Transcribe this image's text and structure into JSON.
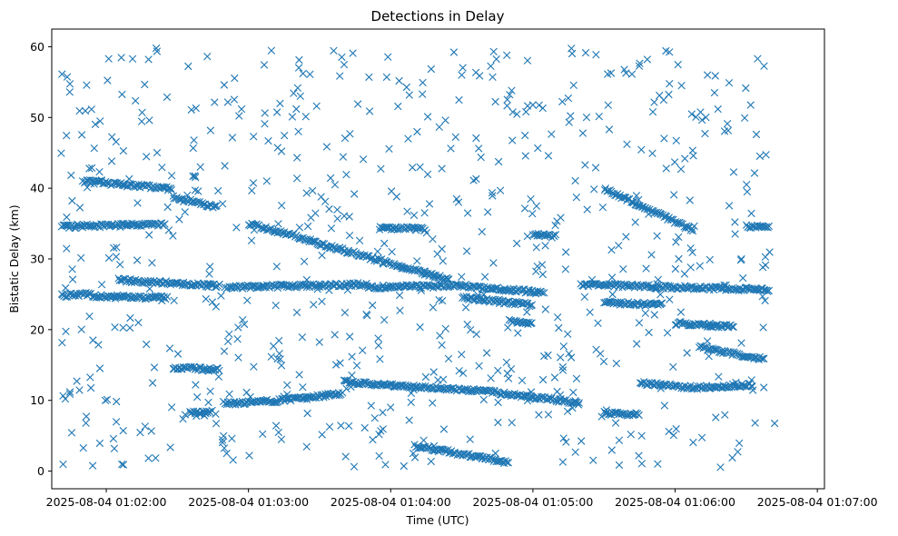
{
  "chart_data": {
    "type": "scatter",
    "title": "Detections in Delay",
    "xlabel": "Time (UTC)",
    "ylabel": "Bistatic Delay (km)",
    "marker": "x",
    "color": "#1f77b4",
    "grid": false,
    "xlim": [
      "2025-08-04 01:01:37",
      "2025-08-04 01:07:03"
    ],
    "ylim": [
      -2.5,
      62.5
    ],
    "x_ticks": [
      "2025-08-04 01:02:00",
      "2025-08-04 01:03:00",
      "2025-08-04 01:04:00",
      "2025-08-04 01:05:00",
      "2025-08-04 01:06:00",
      "2025-08-04 01:07:00"
    ],
    "y_ticks": [
      0,
      10,
      20,
      30,
      40,
      50,
      60
    ],
    "tracks": [
      {
        "x": [
          "2025-08-04 01:01:41",
          "2025-08-04 01:02:25"
        ],
        "y": [
          34.6,
          34.9
        ]
      },
      {
        "x": [
          "2025-08-04 01:01:41",
          "2025-08-04 01:01:54"
        ],
        "y": [
          24.8,
          25.1
        ]
      },
      {
        "x": [
          "2025-08-04 01:01:54",
          "2025-08-04 01:02:26"
        ],
        "y": [
          24.7,
          24.5
        ]
      },
      {
        "x": [
          "2025-08-04 01:01:50",
          "2025-08-04 01:02:28"
        ],
        "y": [
          41.0,
          39.9
        ]
      },
      {
        "x": [
          "2025-08-04 01:02:28",
          "2025-08-04 01:02:47"
        ],
        "y": [
          38.7,
          37.3
        ]
      },
      {
        "x": [
          "2025-08-04 01:02:05",
          "2025-08-04 01:02:48"
        ],
        "y": [
          27.0,
          26.2
        ]
      },
      {
        "x": [
          "2025-08-04 01:02:28",
          "2025-08-04 01:02:48"
        ],
        "y": [
          14.7,
          14.3
        ]
      },
      {
        "x": [
          "2025-08-04 01:02:35",
          "2025-08-04 01:02:45"
        ],
        "y": [
          8.2,
          8.4
        ]
      },
      {
        "x": [
          "2025-08-04 01:02:50",
          "2025-08-04 01:03:50"
        ],
        "y": [
          26.0,
          26.4
        ]
      },
      {
        "x": [
          "2025-08-04 01:03:00",
          "2025-08-04 01:04:25"
        ],
        "y": [
          35.0,
          27.0
        ]
      },
      {
        "x": [
          "2025-08-04 01:02:50",
          "2025-08-04 01:03:15"
        ],
        "y": [
          9.5,
          10.0
        ]
      },
      {
        "x": [
          "2025-08-04 01:03:15",
          "2025-08-04 01:03:40"
        ],
        "y": [
          10.0,
          11.0
        ]
      },
      {
        "x": [
          "2025-08-04 01:03:40",
          "2025-08-04 01:04:40"
        ],
        "y": [
          12.6,
          11.3
        ]
      },
      {
        "x": [
          "2025-08-04 01:03:50",
          "2025-08-04 01:04:30"
        ],
        "y": [
          26.0,
          26.2
        ]
      },
      {
        "x": [
          "2025-08-04 01:03:55",
          "2025-08-04 01:04:15"
        ],
        "y": [
          34.4,
          34.2
        ]
      },
      {
        "x": [
          "2025-08-04 01:04:30",
          "2025-08-04 01:05:05"
        ],
        "y": [
          26.2,
          25.2
        ]
      },
      {
        "x": [
          "2025-08-04 01:04:30",
          "2025-08-04 01:05:00"
        ],
        "y": [
          24.5,
          23.5
        ]
      },
      {
        "x": [
          "2025-08-04 01:04:40",
          "2025-08-04 01:05:20"
        ],
        "y": [
          11.3,
          9.6
        ]
      },
      {
        "x": [
          "2025-08-04 01:04:10",
          "2025-08-04 01:04:50"
        ],
        "y": [
          3.6,
          1.2
        ]
      },
      {
        "x": [
          "2025-08-04 01:04:50",
          "2025-08-04 01:05:00"
        ],
        "y": [
          21.2,
          20.8
        ]
      },
      {
        "x": [
          "2025-08-04 01:05:00",
          "2025-08-04 01:05:10"
        ],
        "y": [
          33.4,
          33.2
        ]
      },
      {
        "x": [
          "2025-08-04 01:05:30",
          "2025-08-04 01:06:08"
        ],
        "y": [
          39.9,
          34.0
        ]
      },
      {
        "x": [
          "2025-08-04 01:05:20",
          "2025-08-04 01:06:40"
        ],
        "y": [
          26.4,
          25.6
        ]
      },
      {
        "x": [
          "2025-08-04 01:05:30",
          "2025-08-04 01:05:55"
        ],
        "y": [
          23.8,
          23.5
        ]
      },
      {
        "x": [
          "2025-08-04 01:05:30",
          "2025-08-04 01:05:45"
        ],
        "y": [
          8.2,
          8.0
        ]
      },
      {
        "x": [
          "2025-08-04 01:05:45",
          "2025-08-04 01:06:08"
        ],
        "y": [
          12.5,
          11.8
        ]
      },
      {
        "x": [
          "2025-08-04 01:06:08",
          "2025-08-04 01:06:33"
        ],
        "y": [
          11.8,
          12.2
        ]
      },
      {
        "x": [
          "2025-08-04 01:06:10",
          "2025-08-04 01:06:38"
        ],
        "y": [
          17.5,
          15.8
        ]
      },
      {
        "x": [
          "2025-08-04 01:06:30",
          "2025-08-04 01:06:40"
        ],
        "y": [
          34.6,
          34.6
        ]
      },
      {
        "x": [
          "2025-08-04 01:06:00",
          "2025-08-04 01:06:25"
        ],
        "y": [
          20.9,
          20.4
        ]
      }
    ],
    "background_noise": {
      "approx_points": 700,
      "x_range": [
        "2025-08-04 01:01:41",
        "2025-08-04 01:06:42"
      ],
      "y_range": [
        0.5,
        59.8
      ]
    }
  }
}
